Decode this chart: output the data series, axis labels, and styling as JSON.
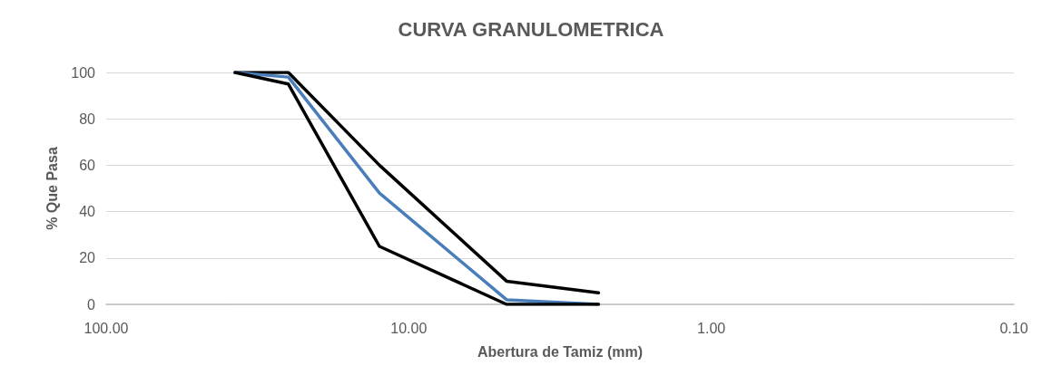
{
  "chart_data": {
    "type": "line",
    "title": "CURVA GRANULOMETRICA",
    "xlabel": "Abertura de Tamiz (mm)",
    "ylabel": "% Que Pasa",
    "x": [
      37.5,
      25,
      12.5,
      4.75,
      2.36
    ],
    "series": [
      {
        "color": "#000000",
        "values": [
          100,
          100,
          60,
          10,
          5
        ]
      },
      {
        "color": "#4a7ebb",
        "values": [
          100,
          98,
          48,
          2,
          0
        ]
      },
      {
        "color": "#000000",
        "values": [
          100,
          95,
          25,
          0,
          0
        ]
      }
    ],
    "log": "x",
    "xlim": [
      100,
      0.1
    ],
    "xticks": [
      {
        "value": 100,
        "label": "100.00"
      },
      {
        "value": 10,
        "label": "10.00"
      },
      {
        "value": 1,
        "label": "1.00"
      },
      {
        "value": 0.1,
        "label": "0.10"
      }
    ],
    "ylim": [
      0,
      100
    ],
    "yticks": [
      0,
      20,
      40,
      60,
      80,
      100
    ],
    "grid": "y",
    "marker": "none",
    "line_style": "solid"
  }
}
